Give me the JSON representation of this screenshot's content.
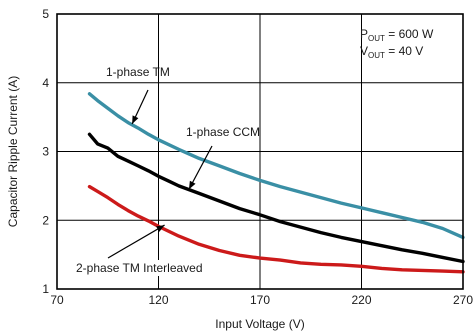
{
  "chart_data": {
    "type": "line",
    "xlabel": "Input Voltage (V)",
    "ylabel": "Capacitor Ripple Current (A)",
    "xlim": [
      70,
      270
    ],
    "ylim": [
      1,
      5
    ],
    "xticks": [
      70,
      120,
      170,
      220,
      270
    ],
    "yticks": [
      1,
      2,
      3,
      4,
      5
    ],
    "grid": true,
    "conditions": [
      {
        "main": "P",
        "sub": "OUT",
        "rest": " = 600 W"
      },
      {
        "main": "V",
        "sub": "OUT",
        "rest": " = 40 V"
      }
    ],
    "series": [
      {
        "name": "1-phase TM",
        "color": "#3a8fa5",
        "x": [
          86,
          90,
          95,
          100,
          105,
          110,
          115,
          120,
          130,
          140,
          150,
          160,
          170,
          180,
          190,
          200,
          210,
          220,
          230,
          240,
          250,
          260,
          270
        ],
        "y": [
          3.84,
          3.74,
          3.63,
          3.52,
          3.42,
          3.34,
          3.25,
          3.17,
          3.03,
          2.9,
          2.79,
          2.68,
          2.58,
          2.49,
          2.41,
          2.33,
          2.25,
          2.18,
          2.11,
          2.04,
          1.97,
          1.88,
          1.75
        ]
      },
      {
        "name": "1-phase CCM",
        "color": "#000000",
        "x": [
          86,
          90,
          95,
          100,
          105,
          110,
          115,
          120,
          125,
          130,
          140,
          150,
          160,
          170,
          180,
          190,
          200,
          210,
          220,
          230,
          240,
          250,
          260,
          270
        ],
        "y": [
          3.25,
          3.11,
          3.05,
          2.93,
          2.86,
          2.79,
          2.72,
          2.64,
          2.57,
          2.5,
          2.39,
          2.28,
          2.17,
          2.08,
          1.98,
          1.9,
          1.82,
          1.75,
          1.69,
          1.63,
          1.57,
          1.52,
          1.46,
          1.4
        ]
      },
      {
        "name": "2-phase TM Interleaved",
        "color": "#cc1a1a",
        "x": [
          86,
          90,
          95,
          100,
          105,
          110,
          115,
          120,
          130,
          140,
          150,
          160,
          170,
          180,
          190,
          200,
          210,
          220,
          230,
          240,
          250,
          260,
          270
        ],
        "y": [
          2.49,
          2.42,
          2.33,
          2.23,
          2.14,
          2.06,
          1.99,
          1.91,
          1.77,
          1.65,
          1.56,
          1.49,
          1.45,
          1.42,
          1.38,
          1.36,
          1.35,
          1.33,
          1.3,
          1.28,
          1.27,
          1.26,
          1.25
        ]
      }
    ],
    "annotations": [
      {
        "text": "1-phase TM",
        "series": "1-phase TM",
        "point": [
          107,
          3.4
        ]
      },
      {
        "text": "1-phase CCM",
        "series": "1-phase CCM",
        "point": [
          135,
          2.45
        ]
      },
      {
        "text": "2-phase TM Interleaved",
        "series": "2-phase TM Interleaved",
        "point": [
          123,
          1.93
        ]
      }
    ]
  }
}
